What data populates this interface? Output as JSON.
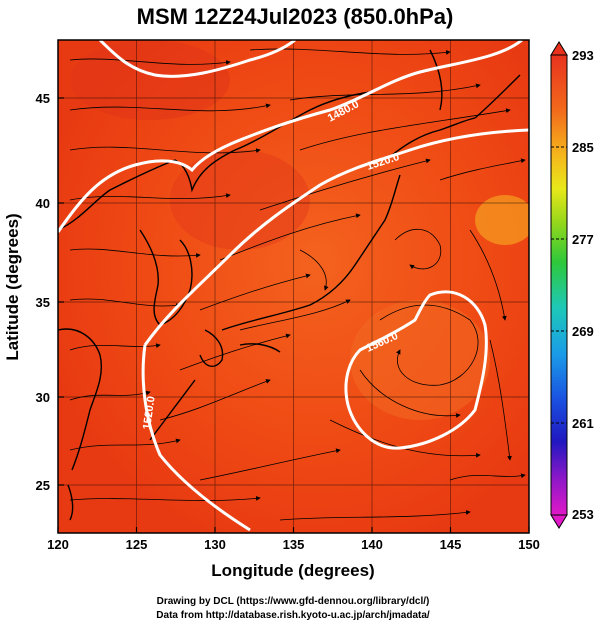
{
  "title": "MSM 12Z24Jul2023 (850.0hPa)",
  "x_axis": {
    "label": "Longitude (degrees)",
    "ticks": [
      120,
      125,
      130,
      135,
      140,
      145,
      150
    ]
  },
  "y_axis": {
    "label": "Latitude  (degrees)",
    "ticks": [
      25,
      30,
      35,
      40,
      45
    ]
  },
  "colorbar": {
    "ticks": [
      253,
      261,
      269,
      277,
      285,
      293
    ]
  },
  "contour_labels": [
    "1480.0",
    "1520.0",
    "1560.0",
    "1520.0"
  ],
  "credits": {
    "line1": "Drawing by DCL (https://www.gfd-dennou.org/library/dcl/)",
    "line2": "Data from http://database.rish.kyoto-u.ac.jp/arch/jmadata/"
  },
  "colors": {
    "field_warm": "#ee3b10",
    "field_hot": "#f25a1a",
    "contour": "#ffffff",
    "coast": "#000000"
  }
}
